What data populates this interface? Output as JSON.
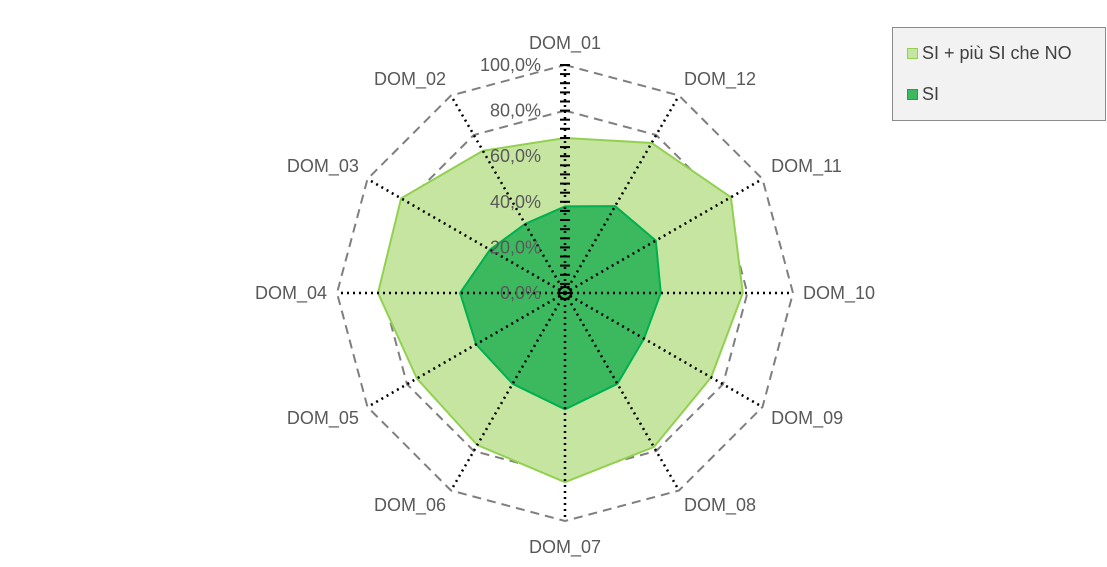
{
  "chart_data": {
    "type": "radar",
    "categories": [
      "DOM_01",
      "DOM_12",
      "DOM_11",
      "DOM_10",
      "DOM_09",
      "DOM_08",
      "DOM_07",
      "DOM_06",
      "DOM_05",
      "DOM_04",
      "DOM_03",
      "DOM_02"
    ],
    "tick_labels": [
      "0,0%",
      "20,0%",
      "40,0%",
      "60,0%",
      "80,0%",
      "100,0%"
    ],
    "rlim": [
      0,
      100
    ],
    "series": [
      {
        "name": "SI + più SI che NO",
        "values": [
          68,
          76,
          84,
          78,
          74,
          78,
          83,
          77,
          75,
          82,
          83,
          72
        ],
        "color": "#92d050",
        "fill": "#c6e5a0"
      },
      {
        "name": "SI",
        "values": [
          38,
          44,
          46,
          42,
          40,
          46,
          51,
          46,
          45,
          46,
          38,
          35
        ],
        "color": "#00b050",
        "fill": "#3cb85f"
      }
    ],
    "legend_position": "top-right",
    "gridlines": "dashed"
  }
}
